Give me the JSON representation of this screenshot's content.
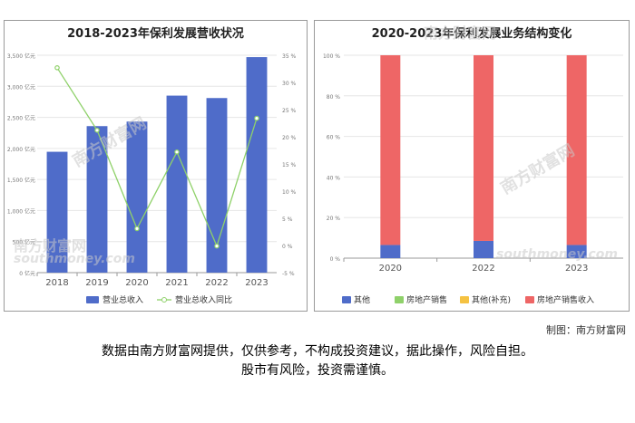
{
  "watermark": {
    "brand": "南方财富网",
    "domain": "southmoney.com"
  },
  "chart_data": [
    {
      "type": "bar",
      "title": "2018-2023年保利发展营收状况",
      "categories": [
        "2018",
        "2019",
        "2020",
        "2021",
        "2022",
        "2023"
      ],
      "series": [
        {
          "name": "营业总收入",
          "kind": "bar",
          "axis": "left",
          "color": "#4f6cc9",
          "values": [
            1946,
            2359,
            2432,
            2850,
            2811,
            3470
          ]
        },
        {
          "name": "营业总收入同比",
          "kind": "line",
          "axis": "right",
          "color": "#8fd16a",
          "values": [
            32.7,
            21.2,
            3.1,
            17.2,
            -0.1,
            23.4
          ]
        }
      ],
      "ylim_left": [
        0,
        3500
      ],
      "yticks_left": [
        "0 亿元",
        "500 亿元",
        "1,000 亿元",
        "1,500 亿元",
        "2,000 亿元",
        "2,500 亿元",
        "3,000 亿元",
        "3,500 亿元"
      ],
      "ylim_right": [
        -5,
        35
      ],
      "yticks_right": [
        "-5 %",
        "0 %",
        "5 %",
        "10 %",
        "15 %",
        "20 %",
        "25 %",
        "30 %",
        "35 %"
      ],
      "legend_position": "bottom",
      "grid": true
    },
    {
      "type": "bar",
      "stacked": true,
      "percent": true,
      "title": "2020-2023年保利发展业务结构变化",
      "categories": [
        "2020",
        "2022",
        "2023"
      ],
      "series": [
        {
          "name": "其他",
          "color": "#4f6cc9",
          "values": [
            6.5,
            8.5,
            6.5
          ]
        },
        {
          "name": "房地产销售",
          "color": "#8fd16a",
          "values": [
            0,
            0,
            0
          ]
        },
        {
          "name": "其他(补充)",
          "color": "#f5c242",
          "values": [
            0,
            0,
            0
          ]
        },
        {
          "name": "房地产销售收入",
          "color": "#ee6666",
          "values": [
            93.5,
            91.5,
            93.5
          ]
        }
      ],
      "ylim": [
        0,
        100
      ],
      "yticks": [
        "0 %",
        "20 %",
        "40 %",
        "60 %",
        "80 %",
        "100 %"
      ],
      "legend_position": "bottom",
      "grid": true
    }
  ],
  "footer": {
    "credit": "制图：南方财富网",
    "disclaimer_line1": "数据由南方财富网提供，仅供参考，不构成投资建议，据此操作，风险自担。",
    "disclaimer_line2": "股市有风险，投资需谨慎。"
  }
}
